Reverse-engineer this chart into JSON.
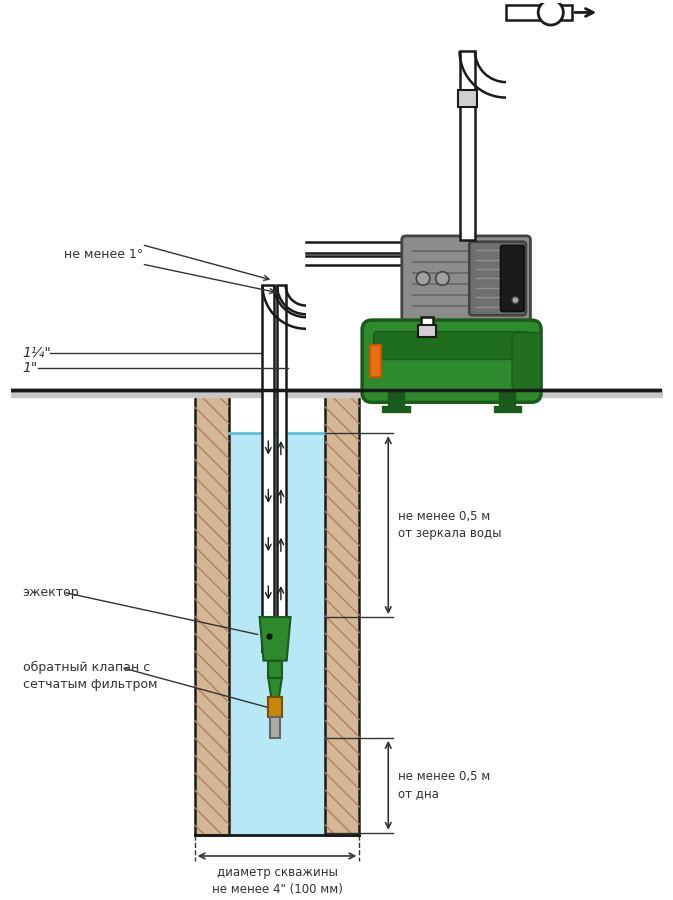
{
  "bg_color": "#ffffff",
  "lc": "#1a1a1a",
  "water_color": "#b8e8f5",
  "hatch_fc": "#d4b896",
  "hatch_lc": "#b08060",
  "green": "#2d8a2d",
  "green_dark": "#1a5a1a",
  "gray_pump": "#909090",
  "gray_motor": "#787878",
  "black": "#111111",
  "orange": "#e87010",
  "dim_lc": "#333333",
  "text_color": "#333333",
  "ann": {
    "ne_menee_1deg": "не менее 1°",
    "pipe_125": "1¼\"",
    "pipe_1": "1\"",
    "ejector": "эжектор",
    "check_valve": "обратный клапан с\nсетчатым фильтром",
    "not_less_05_top": "не менее 0,5 м\nот зеркала воды",
    "not_less_05_bot": "не менее 0,5 м\nот дна",
    "diameter": "диаметр скважины\nне менее 4\" (100 мм)"
  }
}
